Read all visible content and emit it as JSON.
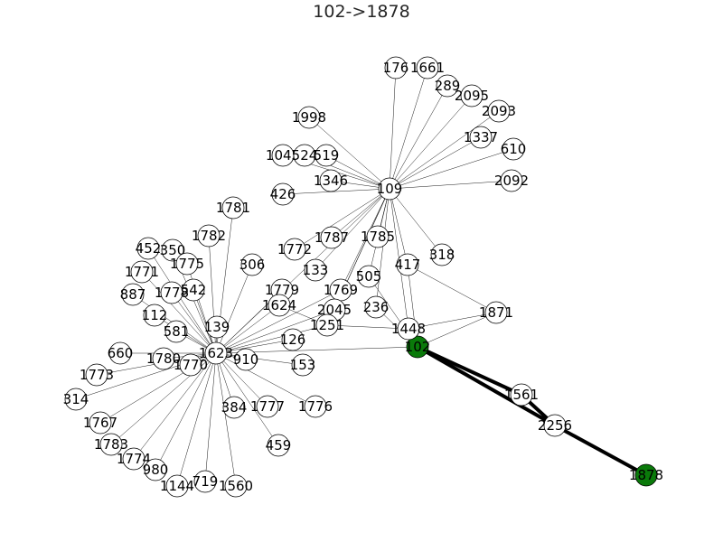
{
  "title": "102->1878",
  "colors": {
    "edge": "#000000",
    "node_fill": "#ffffff",
    "highlight_fill": "#0a7a0a",
    "node_stroke": "#000000"
  },
  "highlight_nodes": [
    "102",
    "1878"
  ],
  "nodes": [
    "102",
    "1878",
    "2256",
    "1561",
    "1448",
    "1871",
    "417",
    "318",
    "109",
    "1623",
    "176",
    "1661",
    "289",
    "2095",
    "2093",
    "1337",
    "610",
    "2092",
    "1998",
    "1045",
    "524",
    "519",
    "1346",
    "426",
    "1787",
    "1785",
    "1772",
    "133",
    "505",
    "1769",
    "236",
    "2045",
    "1251",
    "126",
    "910",
    "153",
    "1779",
    "1624",
    "306",
    "1781",
    "1782",
    "452",
    "350",
    "1775",
    "1771",
    "542",
    "1778",
    "887",
    "112",
    "581",
    "139",
    "660",
    "1780",
    "1770",
    "1773",
    "314",
    "1767",
    "1783",
    "1774",
    "980",
    "1144",
    "719",
    "1560",
    "384",
    "1777",
    "1776",
    "459"
  ],
  "edges": [
    [
      "109",
      "176"
    ],
    [
      "109",
      "1661"
    ],
    [
      "109",
      "289"
    ],
    [
      "109",
      "2095"
    ],
    [
      "109",
      "2093"
    ],
    [
      "109",
      "1337"
    ],
    [
      "109",
      "610"
    ],
    [
      "109",
      "2092"
    ],
    [
      "109",
      "1998"
    ],
    [
      "109",
      "1045"
    ],
    [
      "109",
      "524"
    ],
    [
      "109",
      "519"
    ],
    [
      "109",
      "1346"
    ],
    [
      "109",
      "426"
    ],
    [
      "109",
      "318"
    ],
    [
      "109",
      "417"
    ],
    [
      "109",
      "1785"
    ],
    [
      "109",
      "1787"
    ],
    [
      "109",
      "1772"
    ],
    [
      "109",
      "133"
    ],
    [
      "109",
      "505"
    ],
    [
      "109",
      "1769"
    ],
    [
      "109",
      "236"
    ],
    [
      "109",
      "2045"
    ],
    [
      "109",
      "1251"
    ],
    [
      "109",
      "1448"
    ],
    [
      "109",
      "1623"
    ],
    [
      "1623",
      "1781"
    ],
    [
      "1623",
      "1782"
    ],
    [
      "1623",
      "452"
    ],
    [
      "1623",
      "350"
    ],
    [
      "1623",
      "1775"
    ],
    [
      "1623",
      "1771"
    ],
    [
      "1623",
      "542"
    ],
    [
      "1623",
      "1778"
    ],
    [
      "1623",
      "887"
    ],
    [
      "1623",
      "112"
    ],
    [
      "1623",
      "581"
    ],
    [
      "1623",
      "139"
    ],
    [
      "1623",
      "660"
    ],
    [
      "1623",
      "1780"
    ],
    [
      "1623",
      "1770"
    ],
    [
      "1623",
      "1773"
    ],
    [
      "1623",
      "314"
    ],
    [
      "1623",
      "1767"
    ],
    [
      "1623",
      "1783"
    ],
    [
      "1623",
      "1774"
    ],
    [
      "1623",
      "980"
    ],
    [
      "1623",
      "1144"
    ],
    [
      "1623",
      "719"
    ],
    [
      "1623",
      "1560"
    ],
    [
      "1623",
      "384"
    ],
    [
      "1623",
      "1777"
    ],
    [
      "1623",
      "1776"
    ],
    [
      "1623",
      "459"
    ],
    [
      "1623",
      "910"
    ],
    [
      "1623",
      "153"
    ],
    [
      "1623",
      "126"
    ],
    [
      "1623",
      "1624"
    ],
    [
      "1623",
      "1779"
    ],
    [
      "1623",
      "306"
    ],
    [
      "1623",
      "1251"
    ],
    [
      "1623",
      "2045"
    ],
    [
      "1623",
      "1769"
    ],
    [
      "1623",
      "102"
    ],
    [
      "102",
      "1448"
    ],
    [
      "102",
      "1871"
    ],
    [
      "102",
      "417"
    ],
    [
      "102",
      "505"
    ],
    [
      "102",
      "236"
    ],
    [
      "1448",
      "1871"
    ],
    [
      "1448",
      "1251"
    ],
    [
      "1251",
      "2045"
    ],
    [
      "1251",
      "1769"
    ],
    [
      "1251",
      "1624"
    ],
    [
      "417",
      "1871"
    ]
  ],
  "path_edges": [
    [
      "102",
      "1561"
    ],
    [
      "1561",
      "2256"
    ],
    [
      "102",
      "2256"
    ],
    [
      "2256",
      "1878"
    ]
  ]
}
